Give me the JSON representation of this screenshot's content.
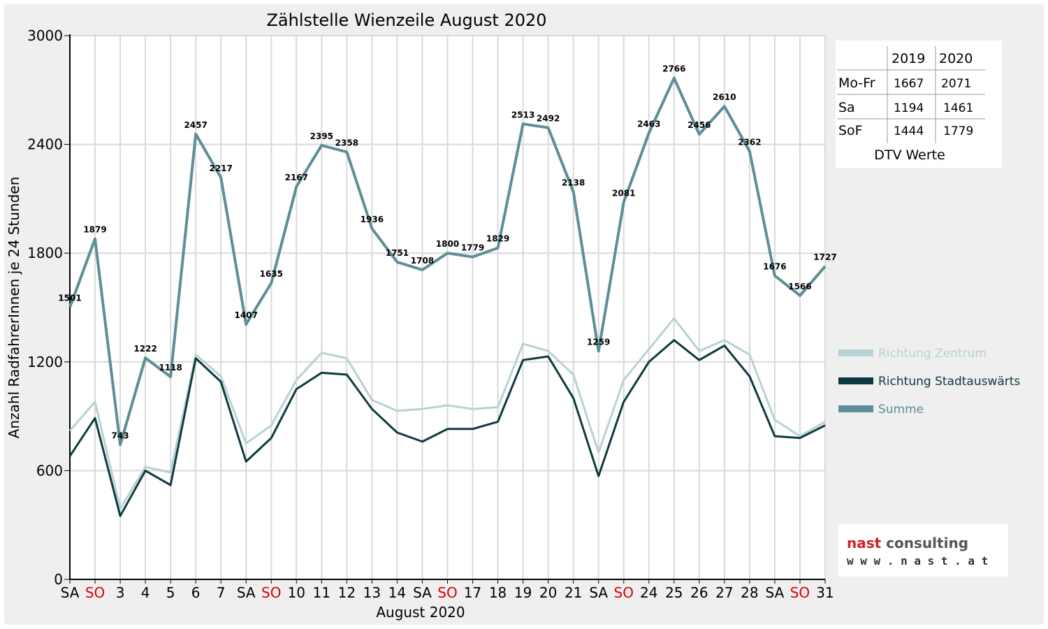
{
  "chart_data": {
    "type": "line",
    "title": "Zählstelle Wienzeile August 2020",
    "xlabel": "August 2020",
    "ylabel": "Anzahl RadfahrerInnen je 24 Stunden",
    "ylim": [
      0,
      3000
    ],
    "yticks": [
      0,
      600,
      1200,
      1800,
      2400,
      3000
    ],
    "grid": true,
    "legend_position": "right",
    "categories": [
      "SA",
      "SO",
      "3",
      "4",
      "5",
      "6",
      "7",
      "SA",
      "SO",
      "10",
      "11",
      "12",
      "13",
      "14",
      "SA",
      "SO",
      "17",
      "18",
      "19",
      "20",
      "21",
      "SA",
      "SO",
      "24",
      "25",
      "26",
      "27",
      "28",
      "SA",
      "SO",
      "31"
    ],
    "weekend_color": "#dd0000",
    "series": [
      {
        "name": "Richtung Zentrum",
        "color": "#b9d1d4",
        "values": [
          820,
          980,
          390,
          620,
          590,
          1240,
          1120,
          750,
          850,
          1100,
          1250,
          1220,
          990,
          930,
          940,
          960,
          940,
          950,
          1300,
          1260,
          1130,
          700,
          1100,
          1270,
          1440,
          1260,
          1320,
          1240,
          880,
          790,
          870
        ]
      },
      {
        "name": "Richtung Stadtauswärts",
        "color": "#0d3a40",
        "values": [
          680,
          890,
          350,
          600,
          520,
          1220,
          1090,
          650,
          780,
          1050,
          1140,
          1130,
          940,
          810,
          760,
          830,
          830,
          870,
          1210,
          1230,
          1000,
          570,
          980,
          1200,
          1320,
          1210,
          1290,
          1120,
          790,
          780,
          850
        ]
      },
      {
        "name": "Summe",
        "color": "#5e8e97",
        "values": [
          1501,
          1879,
          743,
          1222,
          1118,
          2457,
          2217,
          1407,
          1635,
          2167,
          2395,
          2358,
          1936,
          1751,
          1708,
          1800,
          1779,
          1829,
          2513,
          2492,
          2138,
          1259,
          2081,
          2463,
          2766,
          2456,
          2610,
          2362,
          1676,
          1566,
          1727
        ]
      }
    ],
    "data_labels": [
      "1501",
      "1879",
      "743",
      "1222",
      "1118",
      "2457",
      "2217",
      "1407",
      "1635",
      "2167",
      "2395",
      "2358",
      "1936",
      "1751",
      "1708",
      "1800",
      "1779",
      "1829",
      "2513",
      "2492",
      "2138",
      "1259",
      "2081",
      "2463",
      "2766",
      "2456",
      "2610",
      "2362",
      "1676",
      "1566",
      "1727"
    ]
  },
  "dtv_table": {
    "columns": [
      "2019",
      "2020"
    ],
    "rows": [
      {
        "label": "Mo-Fr",
        "v2019": "1667",
        "v2020": "2071"
      },
      {
        "label": "Sa",
        "v2019": "1194",
        "v2020": "1461"
      },
      {
        "label": "SoF",
        "v2019": "1444",
        "v2020": "1779"
      }
    ],
    "caption": "DTV Werte"
  },
  "logo": {
    "text_1": "nast",
    "text_2": "consulting",
    "url_text": "w w w . n a s t . a t",
    "color_1": "#d42020",
    "color_2": "#555555"
  }
}
